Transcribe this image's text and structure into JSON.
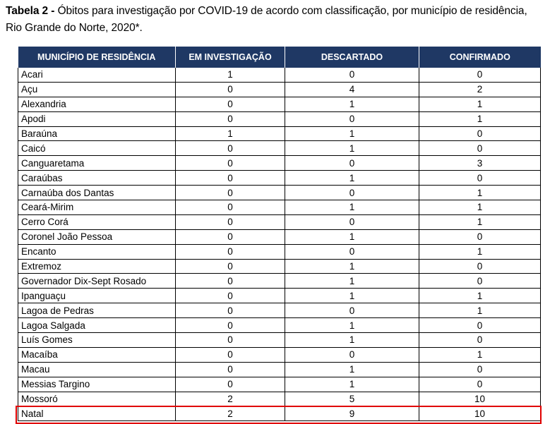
{
  "caption": {
    "label": "Tabela 2 -",
    "text": " Óbitos para investigação por COVID-19 de acordo com classificação, por município de residência, Rio Grande do Norte, 2020*."
  },
  "table": {
    "headers": [
      "MUNICÍPIO DE RESIDÊNCIA",
      "EM INVESTIGAÇÃO",
      "DESCARTADO",
      "CONFIRMADO"
    ],
    "header_color": "#1f3864",
    "highlight_color": "#e00000",
    "highlighted_row": "Natal",
    "rows": [
      [
        "Acari",
        "1",
        "0",
        "0"
      ],
      [
        "Açu",
        "0",
        "4",
        "2"
      ],
      [
        "Alexandria",
        "0",
        "1",
        "1"
      ],
      [
        "Apodi",
        "0",
        "0",
        "1"
      ],
      [
        "Baraúna",
        "1",
        "1",
        "0"
      ],
      [
        "Caicó",
        "0",
        "1",
        "0"
      ],
      [
        "Canguaretama",
        "0",
        "0",
        "3"
      ],
      [
        "Caraúbas",
        "0",
        "1",
        "0"
      ],
      [
        "Carnaúba dos Dantas",
        "0",
        "0",
        "1"
      ],
      [
        "Ceará-Mirim",
        "0",
        "1",
        "1"
      ],
      [
        "Cerro Corá",
        "0",
        "0",
        "1"
      ],
      [
        "Coronel João Pessoa",
        "0",
        "1",
        "0"
      ],
      [
        "Encanto",
        "0",
        "0",
        "1"
      ],
      [
        "Extremoz",
        "0",
        "1",
        "0"
      ],
      [
        "Governador Dix-Sept Rosado",
        "0",
        "1",
        "0"
      ],
      [
        "Ipanguaçu",
        "0",
        "1",
        "1"
      ],
      [
        "Lagoa de Pedras",
        "0",
        "0",
        "1"
      ],
      [
        "Lagoa Salgada",
        "0",
        "1",
        "0"
      ],
      [
        "Luís Gomes",
        "0",
        "1",
        "0"
      ],
      [
        "Macaíba",
        "0",
        "0",
        "1"
      ],
      [
        "Macau",
        "0",
        "1",
        "0"
      ],
      [
        "Messias Targino",
        "0",
        "1",
        "0"
      ],
      [
        "Mossoró",
        "2",
        "5",
        "10"
      ],
      [
        "Natal",
        "2",
        "9",
        "10"
      ]
    ]
  }
}
